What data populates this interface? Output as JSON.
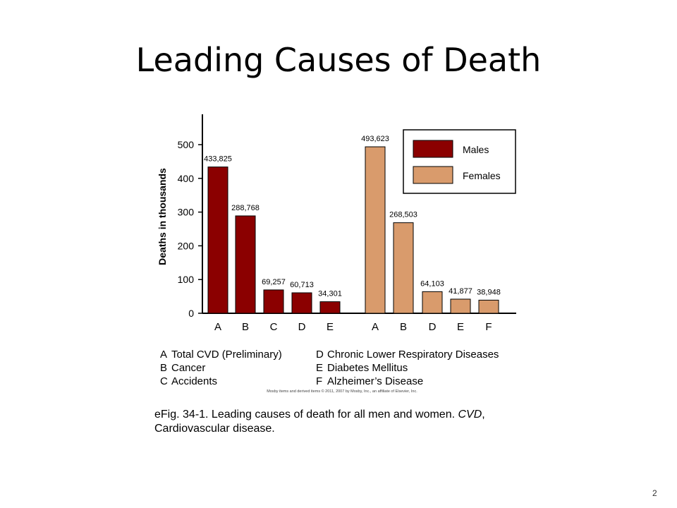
{
  "slide": {
    "title": "Leading Causes of Death",
    "number": "2"
  },
  "caption": {
    "prefix": "eFig. 34-1. Leading causes of death for all men and women. ",
    "abbr": "CVD",
    "suffix": ", Cardiovascular disease."
  },
  "copyright": "Mosby items and derived items © 2011, 2007 by Mosby, Inc., an affiliate of Elsevier, Inc.",
  "colors": {
    "males": "#8b0000",
    "females": "#d99b6c",
    "axis": "#000000"
  },
  "chart_data": {
    "type": "bar",
    "ylabel": "Deaths in thousands",
    "ylim": [
      0,
      600
    ],
    "yticks": [
      "0",
      "100",
      "200",
      "300",
      "400",
      "500"
    ],
    "grid": false,
    "legend_position": "top-right",
    "series": [
      {
        "name": "Males",
        "categories": [
          "A",
          "B",
          "C",
          "D",
          "E"
        ],
        "values": [
          433825,
          288768,
          69257,
          60713,
          34301
        ],
        "labels": [
          "433,825",
          "288,768",
          "69,257",
          "60,713",
          "34,301"
        ]
      },
      {
        "name": "Females",
        "categories": [
          "A",
          "B",
          "D",
          "E",
          "F"
        ],
        "values": [
          493623,
          268503,
          64103,
          41877,
          38948
        ],
        "labels": [
          "493,623",
          "268,503",
          "64,103",
          "41,877",
          "38,948"
        ]
      }
    ],
    "key": [
      [
        "A",
        "Total CVD (Preliminary)"
      ],
      [
        "B",
        "Cancer"
      ],
      [
        "C",
        "Accidents"
      ],
      [
        "D",
        "Chronic Lower Respiratory Diseases"
      ],
      [
        "E",
        "Diabetes Mellitus"
      ],
      [
        "F",
        "Alzheimer’s Disease"
      ]
    ]
  }
}
